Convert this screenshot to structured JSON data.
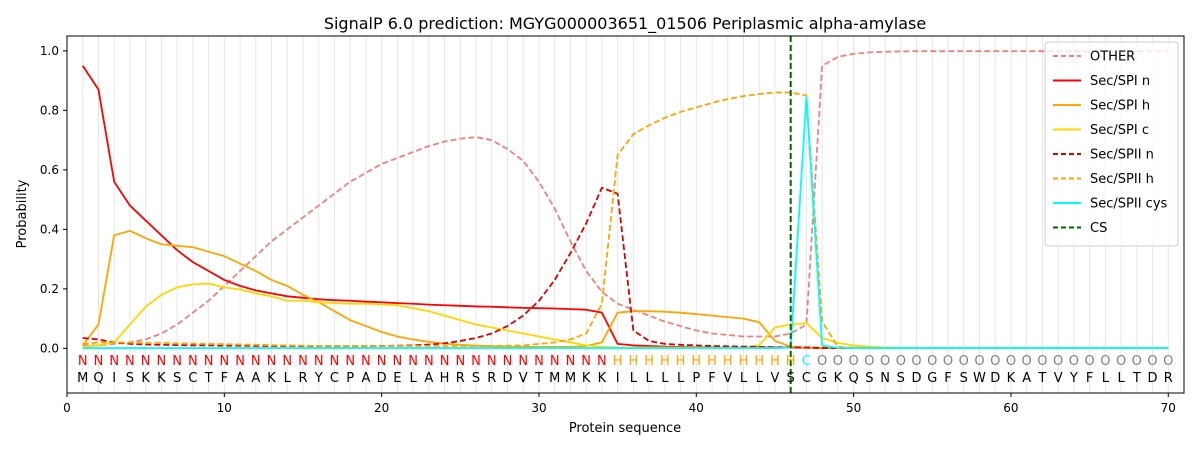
{
  "chart_data": {
    "type": "line",
    "title": "SignalP 6.0 prediction: MGYG000003651_01506 Periplasmic alpha-amylase",
    "xlabel": "Protein sequence",
    "ylabel": "Probability",
    "xlim": [
      0,
      71
    ],
    "ylim": [
      -0.15,
      1.05
    ],
    "x_ticks": [
      "0",
      "10",
      "20",
      "30",
      "40",
      "50",
      "60",
      "70"
    ],
    "y_ticks": [
      "0.0",
      "0.2",
      "0.4",
      "0.6",
      "0.8",
      "1.0"
    ],
    "legend_position": "top-right",
    "grid": "vertical lines at each residue",
    "cleavage_site": 46,
    "sequence": [
      "M",
      "Q",
      "I",
      "S",
      "K",
      "K",
      "S",
      "C",
      "T",
      "F",
      "A",
      "A",
      "K",
      "L",
      "R",
      "Y",
      "C",
      "P",
      "A",
      "D",
      "E",
      "L",
      "A",
      "H",
      "R",
      "S",
      "R",
      "D",
      "V",
      "T",
      "M",
      "M",
      "K",
      "K",
      "I",
      "L",
      "L",
      "L",
      "L",
      "P",
      "F",
      "V",
      "L",
      "L",
      "V",
      "S",
      "C",
      "G",
      "K",
      "Q",
      "S",
      "N",
      "S",
      "D",
      "G",
      "F",
      "S",
      "W",
      "D",
      "K",
      "A",
      "T",
      "V",
      "Y",
      "F",
      "L",
      "L",
      "T",
      "D",
      "R"
    ],
    "labels": [
      "N",
      "N",
      "N",
      "N",
      "N",
      "N",
      "N",
      "N",
      "N",
      "N",
      "N",
      "N",
      "N",
      "N",
      "N",
      "N",
      "N",
      "N",
      "N",
      "N",
      "N",
      "N",
      "N",
      "N",
      "N",
      "N",
      "N",
      "N",
      "N",
      "N",
      "N",
      "N",
      "N",
      "N",
      "H",
      "H",
      "H",
      "H",
      "H",
      "H",
      "H",
      "H",
      "H",
      "H",
      "H",
      "H",
      "C",
      "O",
      "O",
      "O",
      "O",
      "O",
      "O",
      "O",
      "O",
      "O",
      "O",
      "O",
      "O",
      "O",
      "O",
      "O",
      "O",
      "O",
      "O",
      "O",
      "O",
      "O",
      "O",
      "O"
    ],
    "label_colors": {
      "N": "#ff0000",
      "H": "#ffa500",
      "C": "#00ffff",
      "O": "#808080"
    },
    "series": [
      {
        "name": "OTHER",
        "color": "#f08080",
        "dash": true,
        "values": [
          0.01,
          0.01,
          0.015,
          0.02,
          0.03,
          0.05,
          0.08,
          0.12,
          0.16,
          0.21,
          0.26,
          0.31,
          0.36,
          0.4,
          0.44,
          0.48,
          0.52,
          0.56,
          0.59,
          0.62,
          0.64,
          0.66,
          0.68,
          0.695,
          0.705,
          0.71,
          0.7,
          0.67,
          0.63,
          0.56,
          0.47,
          0.36,
          0.26,
          0.19,
          0.15,
          0.13,
          0.11,
          0.09,
          0.075,
          0.06,
          0.05,
          0.045,
          0.04,
          0.04,
          0.04,
          0.05,
          0.08,
          0.95,
          0.98,
          0.99,
          0.995,
          0.997,
          0.998,
          0.999,
          0.999,
          0.999,
          0.999,
          0.999,
          0.999,
          0.999,
          0.999,
          0.999,
          0.999,
          0.999,
          0.999,
          0.999,
          0.999,
          0.999,
          0.999,
          0.999
        ]
      },
      {
        "name": "Sec/SPI n",
        "color": "#ff0000",
        "dash": false,
        "values": [
          0.95,
          0.87,
          0.56,
          0.48,
          0.43,
          0.38,
          0.33,
          0.29,
          0.26,
          0.23,
          0.21,
          0.195,
          0.185,
          0.175,
          0.17,
          0.165,
          0.162,
          0.16,
          0.157,
          0.155,
          0.152,
          0.15,
          0.147,
          0.145,
          0.143,
          0.141,
          0.14,
          0.138,
          0.136,
          0.135,
          0.134,
          0.132,
          0.13,
          0.12,
          0.015,
          0.01,
          0.008,
          0.006,
          0.005,
          0.004,
          0.004,
          0.003,
          0.003,
          0.003,
          0.003,
          0.003,
          0.002,
          0.001,
          0.001,
          0.001,
          0.001,
          0.001,
          0.001,
          0.001,
          0.001,
          0.001,
          0.001,
          0.001,
          0.001,
          0.001,
          0.001,
          0.001,
          0.001,
          0.001,
          0.001,
          0.001,
          0.001,
          0.001,
          0.001,
          0.001
        ]
      },
      {
        "name": "Sec/SPI h",
        "color": "#ffa500",
        "dash": false,
        "values": [
          0.01,
          0.08,
          0.38,
          0.395,
          0.37,
          0.35,
          0.345,
          0.34,
          0.325,
          0.31,
          0.285,
          0.26,
          0.23,
          0.21,
          0.18,
          0.155,
          0.125,
          0.095,
          0.075,
          0.055,
          0.04,
          0.03,
          0.022,
          0.016,
          0.012,
          0.009,
          0.007,
          0.006,
          0.005,
          0.005,
          0.005,
          0.005,
          0.008,
          0.02,
          0.12,
          0.125,
          0.125,
          0.123,
          0.12,
          0.115,
          0.11,
          0.105,
          0.1,
          0.088,
          0.025,
          0.006,
          0.003,
          0.002,
          0.001,
          0.001,
          0.001,
          0.001,
          0.001,
          0.001,
          0.001,
          0.001,
          0.001,
          0.001,
          0.001,
          0.001,
          0.001,
          0.001,
          0.001,
          0.001,
          0.001,
          0.001,
          0.001,
          0.001,
          0.001,
          0.001
        ]
      },
      {
        "name": "Sec/SPI c",
        "color": "#ffd700",
        "dash": false,
        "values": [
          0.005,
          0.01,
          0.02,
          0.08,
          0.14,
          0.18,
          0.205,
          0.215,
          0.218,
          0.205,
          0.198,
          0.185,
          0.175,
          0.16,
          0.16,
          0.155,
          0.152,
          0.15,
          0.15,
          0.148,
          0.145,
          0.135,
          0.125,
          0.11,
          0.095,
          0.08,
          0.07,
          0.06,
          0.05,
          0.04,
          0.03,
          0.02,
          0.01,
          0.005,
          0.003,
          0.003,
          0.003,
          0.003,
          0.003,
          0.003,
          0.003,
          0.003,
          0.003,
          0.01,
          0.07,
          0.08,
          0.085,
          0.035,
          0.018,
          0.01,
          0.006,
          0.003,
          0.002,
          0.001,
          0.001,
          0.001,
          0.001,
          0.001,
          0.001,
          0.001,
          0.001,
          0.001,
          0.001,
          0.001,
          0.001,
          0.001,
          0.001,
          0.001,
          0.001,
          0.001
        ]
      },
      {
        "name": "Sec/SPII n",
        "color": "#dd0000",
        "dash": true,
        "values": [
          0.035,
          0.03,
          0.02,
          0.015,
          0.013,
          0.012,
          0.011,
          0.01,
          0.01,
          0.009,
          0.009,
          0.008,
          0.008,
          0.008,
          0.007,
          0.007,
          0.007,
          0.007,
          0.007,
          0.008,
          0.009,
          0.01,
          0.013,
          0.017,
          0.025,
          0.035,
          0.05,
          0.075,
          0.11,
          0.16,
          0.23,
          0.32,
          0.42,
          0.54,
          0.52,
          0.06,
          0.025,
          0.015,
          0.012,
          0.01,
          0.008,
          0.007,
          0.006,
          0.005,
          0.004,
          0.003,
          0.003,
          0.002,
          0.001,
          0.001,
          0.001,
          0.001,
          0.001,
          0.001,
          0.001,
          0.001,
          0.001,
          0.001,
          0.001,
          0.001,
          0.001,
          0.001,
          0.001,
          0.001,
          0.001,
          0.001,
          0.001,
          0.001,
          0.001,
          0.001
        ]
      },
      {
        "name": "Sec/SPII h",
        "color": "#ffa500",
        "dash": true,
        "values": [
          0.015,
          0.02,
          0.02,
          0.02,
          0.018,
          0.018,
          0.017,
          0.016,
          0.015,
          0.014,
          0.013,
          0.012,
          0.011,
          0.01,
          0.009,
          0.008,
          0.008,
          0.008,
          0.008,
          0.008,
          0.008,
          0.008,
          0.008,
          0.008,
          0.008,
          0.008,
          0.008,
          0.009,
          0.01,
          0.015,
          0.02,
          0.03,
          0.05,
          0.15,
          0.65,
          0.72,
          0.75,
          0.775,
          0.795,
          0.81,
          0.825,
          0.838,
          0.848,
          0.855,
          0.86,
          0.86,
          0.85,
          0.09,
          0.005,
          0.003,
          0.002,
          0.001,
          0.001,
          0.001,
          0.001,
          0.001,
          0.001,
          0.001,
          0.001,
          0.001,
          0.001,
          0.001,
          0.001,
          0.001,
          0.001,
          0.001,
          0.001,
          0.001,
          0.001,
          0.001
        ]
      },
      {
        "name": "Sec/SPII cys",
        "color": "#00ffff",
        "dash": false,
        "values": [
          0.001,
          0.001,
          0.001,
          0.001,
          0.001,
          0.001,
          0.001,
          0.001,
          0.001,
          0.001,
          0.001,
          0.001,
          0.001,
          0.001,
          0.001,
          0.001,
          0.001,
          0.001,
          0.001,
          0.001,
          0.001,
          0.001,
          0.001,
          0.001,
          0.001,
          0.001,
          0.001,
          0.001,
          0.001,
          0.001,
          0.001,
          0.001,
          0.001,
          0.001,
          0.001,
          0.001,
          0.001,
          0.001,
          0.001,
          0.001,
          0.001,
          0.001,
          0.001,
          0.001,
          0.001,
          0.002,
          0.845,
          0.01,
          0.002,
          0.001,
          0.001,
          0.001,
          0.001,
          0.001,
          0.001,
          0.001,
          0.001,
          0.001,
          0.001,
          0.001,
          0.001,
          0.001,
          0.001,
          0.001,
          0.001,
          0.001,
          0.001,
          0.001,
          0.001,
          0.001
        ]
      },
      {
        "name": "CS",
        "color": "#006400",
        "dash": true,
        "vertical": true
      }
    ]
  }
}
